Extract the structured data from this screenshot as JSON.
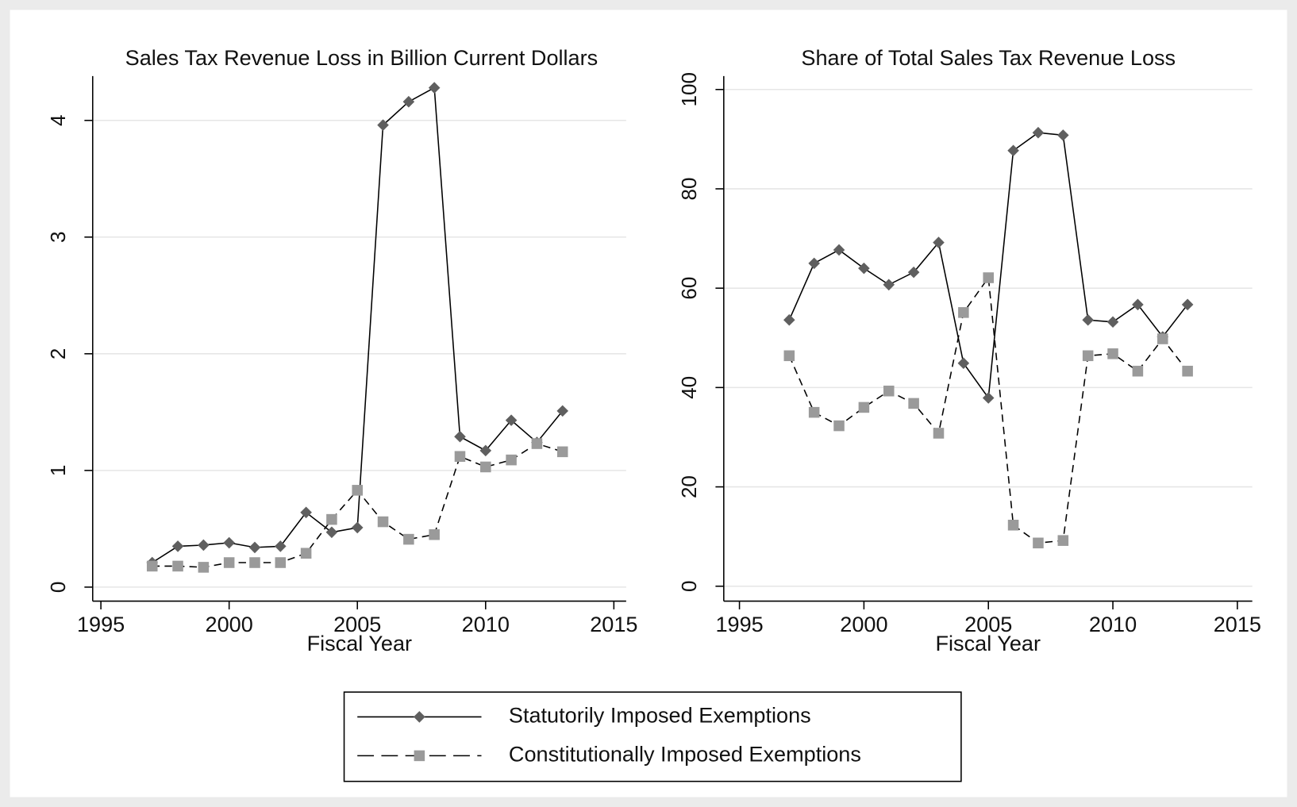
{
  "chart_data": [
    {
      "type": "line",
      "title": "Sales Tax Revenue Loss in Billion Current Dollars",
      "xlabel": "Fiscal Year",
      "x": [
        1997,
        1998,
        1999,
        2000,
        2001,
        2002,
        2003,
        2004,
        2005,
        2006,
        2007,
        2008,
        2009,
        2010,
        2011,
        2012,
        2013
      ],
      "series": [
        {
          "name": "Statutorily Imposed Exemptions",
          "color": "#5f5f5f",
          "line_color": "#000000",
          "line_style": "solid",
          "marker": "diamond",
          "values": [
            0.21,
            0.35,
            0.36,
            0.38,
            0.34,
            0.35,
            0.64,
            0.47,
            0.51,
            3.96,
            4.16,
            4.28,
            1.29,
            1.17,
            1.43,
            1.24,
            1.51
          ]
        },
        {
          "name": "Constitutionally Imposed Exemptions",
          "color": "#9a9a9a",
          "line_color": "#000000",
          "line_style": "dashed",
          "marker": "square",
          "values": [
            0.18,
            0.18,
            0.17,
            0.21,
            0.21,
            0.21,
            0.29,
            0.58,
            0.83,
            0.56,
            0.41,
            0.45,
            1.12,
            1.03,
            1.09,
            1.23,
            1.16
          ]
        }
      ],
      "xlim": [
        1994.68,
        2015.48
      ],
      "xticks": [
        1995,
        2000,
        2005,
        2010,
        2015
      ],
      "ylim": [
        -0.12,
        4.38
      ],
      "yticks": [
        0,
        1,
        2,
        3,
        4
      ],
      "grid": true
    },
    {
      "type": "line",
      "title": "Share of Total Sales Tax Revenue Loss",
      "xlabel": "Fiscal Year",
      "x": [
        1997,
        1998,
        1999,
        2000,
        2001,
        2002,
        2003,
        2004,
        2005,
        2006,
        2007,
        2008,
        2009,
        2010,
        2011,
        2012,
        2013
      ],
      "series": [
        {
          "color": "#5f5f5f",
          "line_color": "#000000",
          "line_style": "solid",
          "marker": "diamond",
          "values": [
            53.6,
            65,
            67.7,
            64,
            60.7,
            63.2,
            69.2,
            44.9,
            37.9,
            87.7,
            91.3,
            90.8,
            53.6,
            53.2,
            56.7,
            50.2,
            56.7
          ]
        },
        {
          "color": "#9a9a9a",
          "line_color": "#000000",
          "line_style": "dashed",
          "marker": "square",
          "values": [
            46.4,
            35,
            32.3,
            36,
            39.3,
            36.8,
            30.8,
            55.1,
            62.1,
            12.3,
            8.7,
            9.2,
            46.4,
            46.8,
            43.3,
            49.8,
            43.3
          ]
        }
      ],
      "xlim": [
        1994.37,
        2015.6
      ],
      "xticks": [
        1995,
        2000,
        2005,
        2010,
        2015
      ],
      "ylim": [
        -3,
        102.7
      ],
      "yticks": [
        0,
        20,
        40,
        60,
        80,
        100
      ],
      "grid": true
    }
  ]
}
